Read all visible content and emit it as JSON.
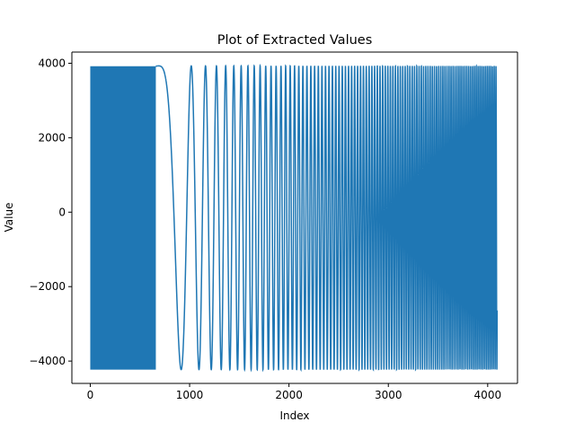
{
  "chart_data": {
    "type": "line",
    "title": "Plot of Extracted Values",
    "xlabel": "Index",
    "ylabel": "Value",
    "xlim": [
      -185,
      4300
    ],
    "ylim": [
      -4600,
      4300
    ],
    "xticks": [
      0,
      1000,
      2000,
      3000,
      4000
    ],
    "xtick_labels": [
      "0",
      "1000",
      "2000",
      "3000",
      "4000"
    ],
    "yticks": [
      -4000,
      -2000,
      0,
      2000,
      4000
    ],
    "ytick_labels": [
      "−4000",
      "−2000",
      "0",
      "2000",
      "4000"
    ],
    "grid": false,
    "series": [
      {
        "name": "",
        "color": "#1f77b4",
        "segments": [
          {
            "kind": "dense",
            "x_start": 0,
            "x_end": 660,
            "y_min": -4230,
            "y_max": 3920
          },
          {
            "kind": "chirp",
            "x_start": 680,
            "x_end": 4095,
            "y_min": -4230,
            "y_max": 3930,
            "first_trough_x": 915,
            "first_peaks_x": [
              1005,
              1160,
              1275,
              1375,
              1465
            ]
          }
        ],
        "x_range": [
          0,
          4095
        ]
      }
    ]
  }
}
